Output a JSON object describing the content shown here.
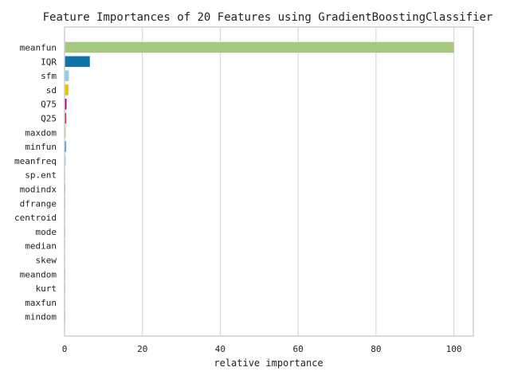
{
  "chart_data": {
    "type": "bar",
    "orientation": "horizontal",
    "title": "Feature Importances of 20 Features using GradientBoostingClassifier",
    "xlabel": "relative importance",
    "ylabel": "",
    "xlim": [
      0,
      105
    ],
    "xticks": [
      0,
      20,
      40,
      60,
      80,
      100
    ],
    "grid": "vertical",
    "categories": [
      "meanfun",
      "IQR",
      "sfm",
      "sd",
      "Q75",
      "Q25",
      "maxdom",
      "minfun",
      "meanfreq",
      "sp.ent",
      "modindx",
      "dfrange",
      "centroid",
      "mode",
      "median",
      "skew",
      "meandom",
      "kurt",
      "maxfun",
      "mindom"
    ],
    "values": [
      100,
      6.5,
      1.1,
      1.0,
      0.5,
      0.4,
      0.3,
      0.35,
      0.3,
      0.1,
      0.08,
      0.06,
      0.05,
      0.04,
      0.03,
      0.03,
      0.02,
      0.02,
      0.01,
      0.01
    ],
    "colors": [
      "#a5c87f",
      "#0e73a6",
      "#8ecfe6",
      "#e5c400",
      "#8b0a5e",
      "#c0262e",
      "#a5c87f",
      "#0e73a6",
      "#8ecfe6",
      "#e5c400",
      "#8b0a5e",
      "#c0262e",
      "#a5c87f",
      "#0e73a6",
      "#8ecfe6",
      "#e5c400",
      "#8b0a5e",
      "#c0262e",
      "#a5c87f",
      "#0e73a6"
    ]
  }
}
